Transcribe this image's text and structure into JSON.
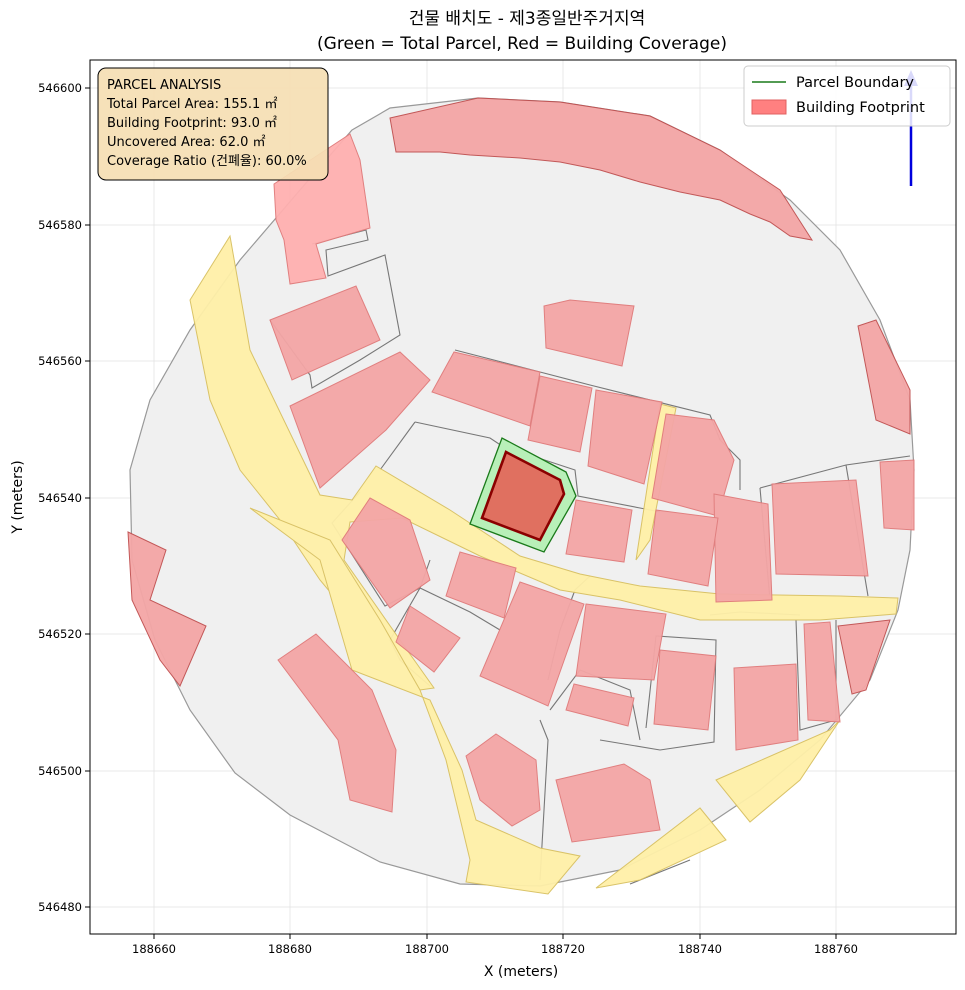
{
  "title_line1": "건물 배치도 - 제3종일반주거지역",
  "title_line2": "(Green = Total Parcel, Red = Building Coverage)",
  "x_axis_label": "X (meters)",
  "y_axis_label": "Y (meters)",
  "x_ticks": [
    "188660",
    "188680",
    "188700",
    "188720",
    "188740",
    "188760"
  ],
  "y_ticks": [
    "546600",
    "546580",
    "546560",
    "546540",
    "546520",
    "546500",
    "546480"
  ],
  "legend": {
    "parcel_label": "Parcel Boundary",
    "building_label": "Building Footprint",
    "placement": "top-right"
  },
  "info_box": {
    "heading": "PARCEL ANALYSIS",
    "line_total": "Total Parcel Area: 155.1 ㎡",
    "line_footprint": "Building Footprint: 93.0 ㎡",
    "line_uncovered": "Uncovered Area: 62.0 ㎡",
    "line_ratio": "Coverage Ratio (건폐율): 60.0%"
  },
  "colors": {
    "parcel_edge": "#1a7a1a",
    "parcel_fill": "#b8f0b8",
    "target_building": "#e07060",
    "target_building_edge": "#8b0000",
    "building_fill": "#f4a6a6",
    "building_edge": "#d05050",
    "road_fill": "#fff0a8",
    "road_edge": "#d8c060",
    "block_fill": "#f0f0f0",
    "block_edge": "#777777",
    "north_arrow": "#0000dd",
    "info_box_fill": "#f5deb3"
  },
  "grid": true
}
